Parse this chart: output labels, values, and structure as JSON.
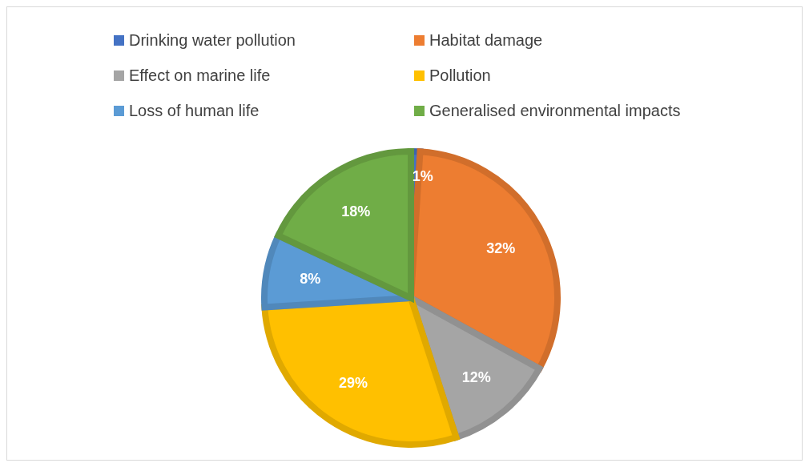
{
  "chart_data": {
    "type": "pie",
    "categories": [
      "Drinking water pollution",
      "Habitat damage",
      "Effect on marine life",
      "Pollution",
      "Loss of human life",
      "Generalised environmental impacts"
    ],
    "values": [
      1,
      32,
      12,
      29,
      8,
      18
    ],
    "colors": [
      "#4472c4",
      "#ed7d31",
      "#a5a5a5",
      "#ffc000",
      "#5b9bd5",
      "#70ad47"
    ],
    "value_labels": [
      "1%",
      "32%",
      "12%",
      "29%",
      "8%",
      "18%"
    ],
    "legend": "top"
  }
}
